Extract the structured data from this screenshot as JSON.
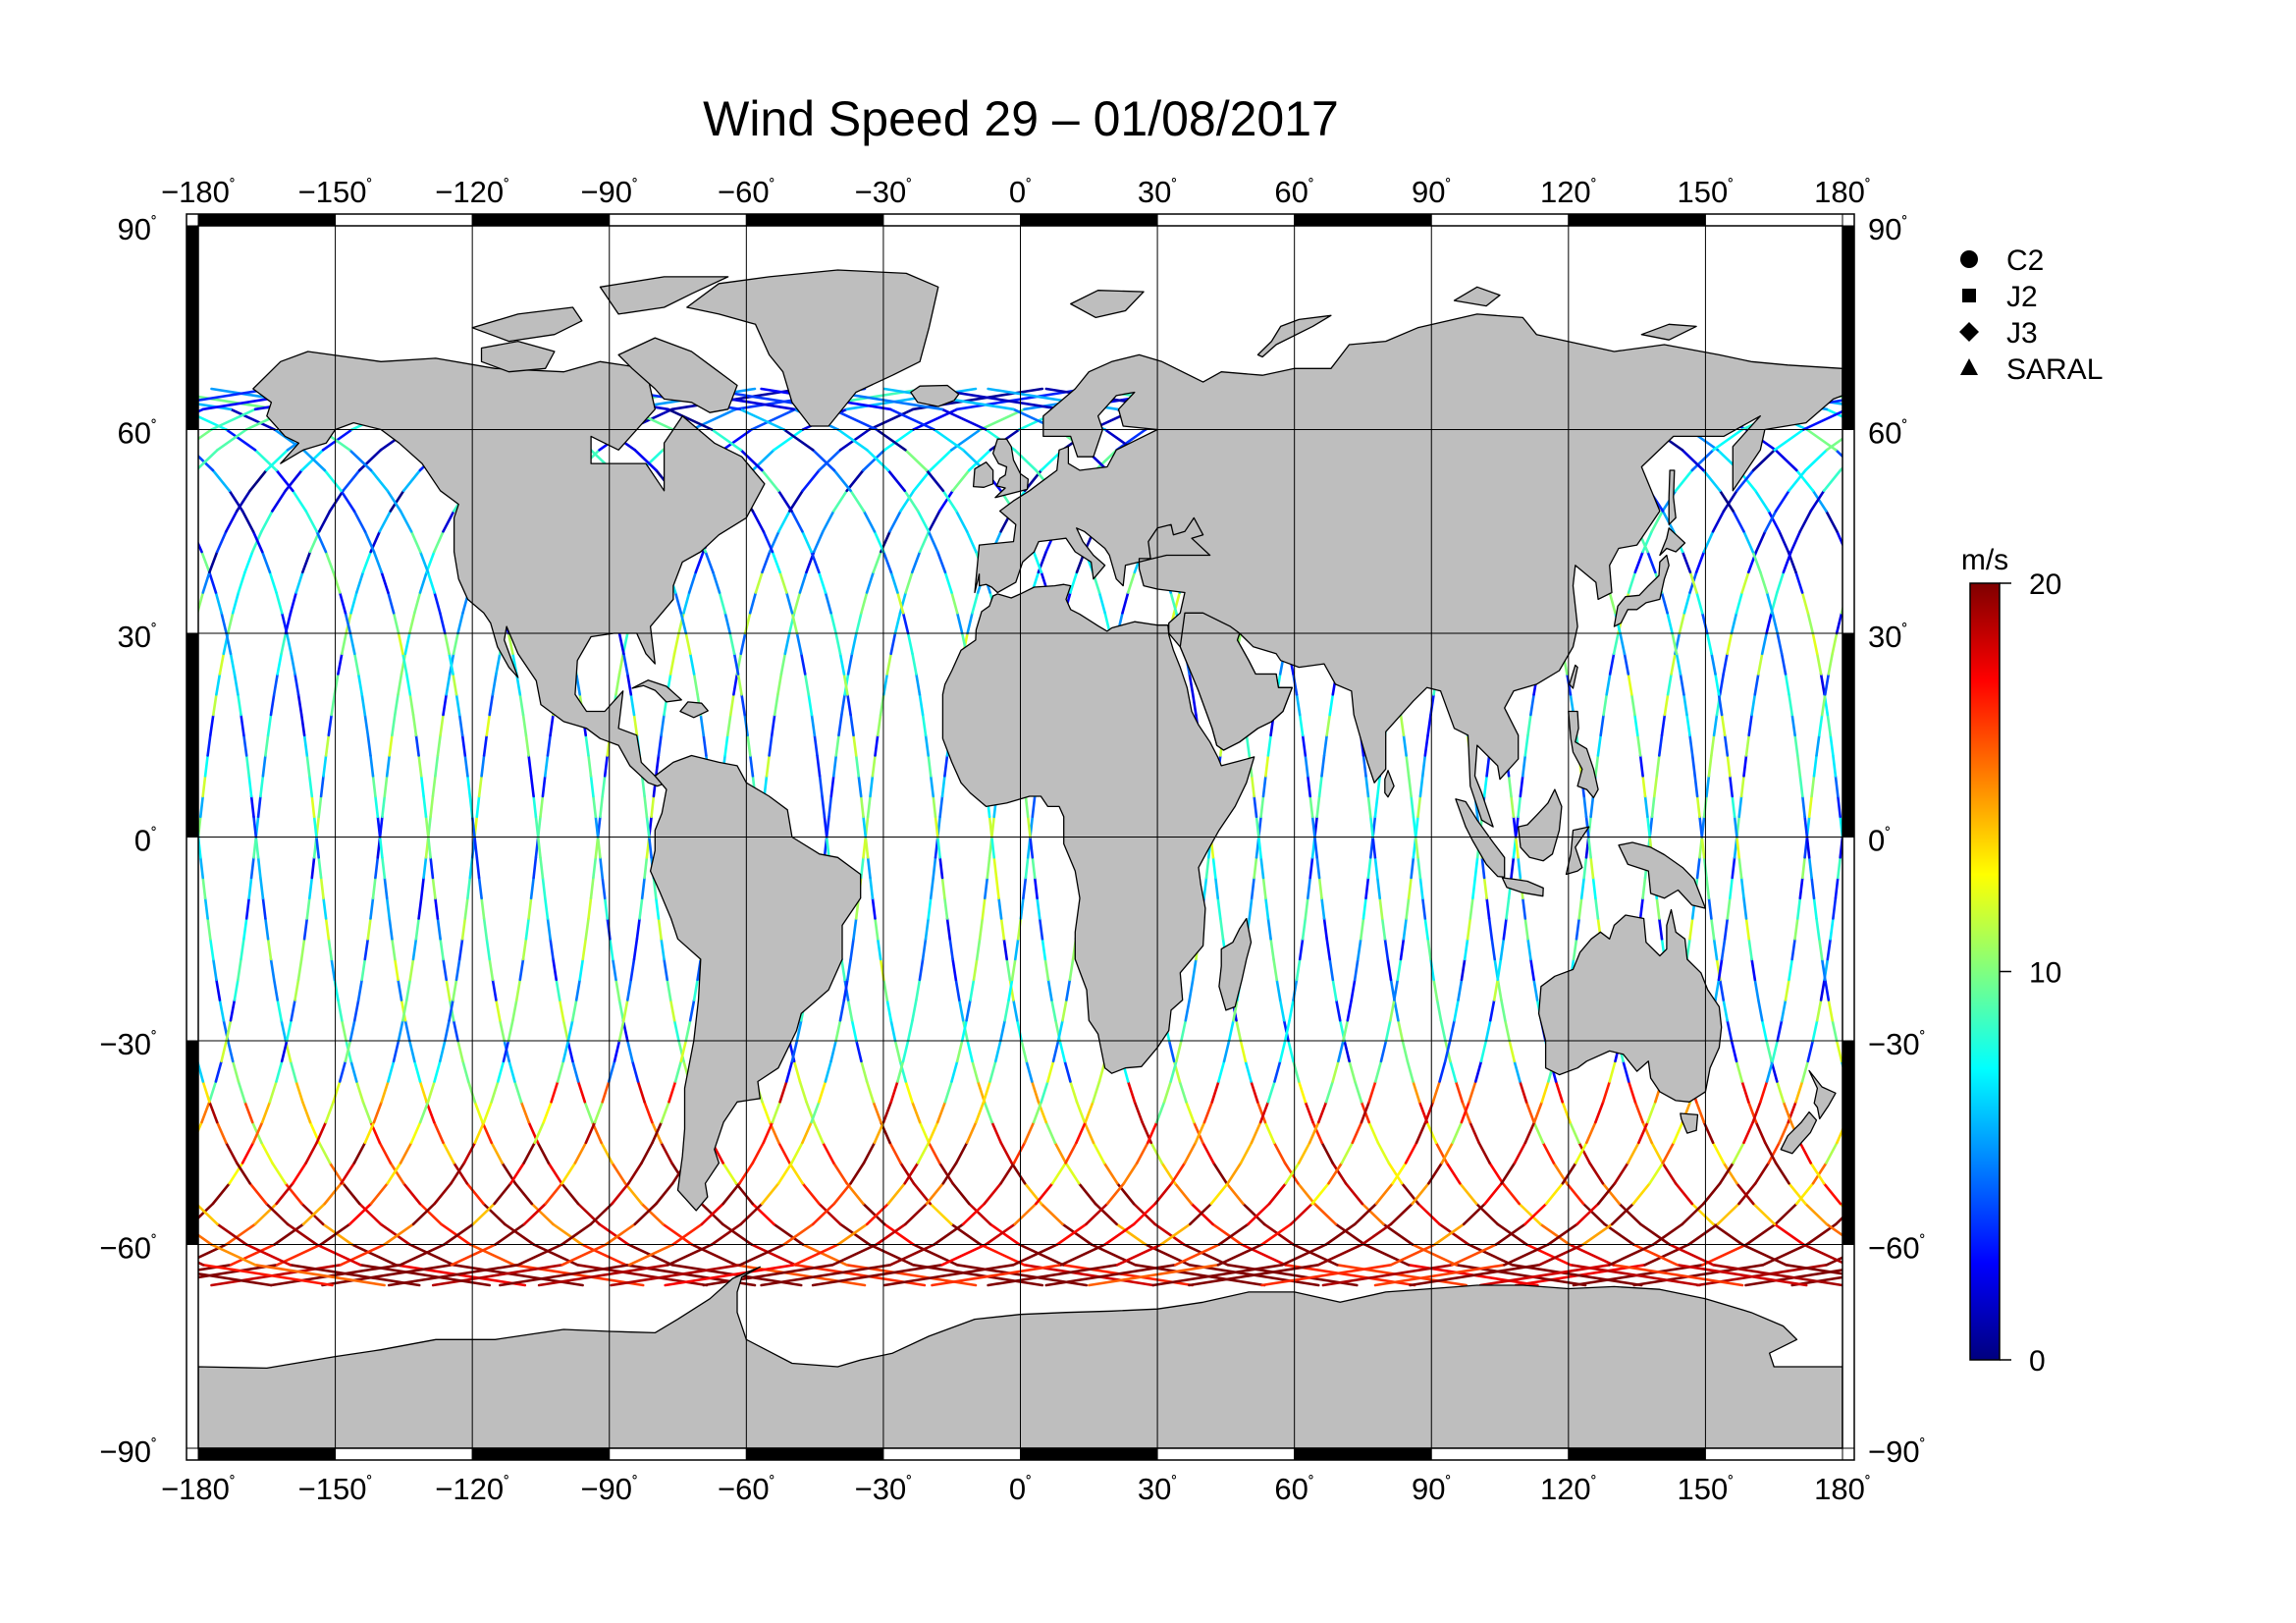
{
  "chart_data": {
    "type": "map",
    "title": "Wind Speed 29 – 01/08/2017",
    "x_ticks": [
      -180,
      -150,
      -120,
      -90,
      -60,
      -30,
      0,
      30,
      60,
      90,
      120,
      150,
      180
    ],
    "y_ticks": [
      90,
      60,
      30,
      0,
      -30,
      -60,
      -90
    ],
    "x_tick_labels": [
      "−180",
      "−150",
      "−120",
      "−90",
      "−60",
      "−30",
      "0",
      "30",
      "60",
      "90",
      "120",
      "150",
      "180"
    ],
    "y_tick_labels": [
      "90",
      "60",
      "30",
      "0",
      "−30",
      "−60",
      "−90"
    ],
    "degree_symbol": "˚",
    "xlim": [
      -180,
      180
    ],
    "ylim": [
      -90,
      90
    ],
    "projection": "equirectangular",
    "grid": true,
    "land_color": "#bebebe",
    "legend": {
      "placement": "right",
      "items": [
        {
          "label": "C2",
          "symbol": "circle"
        },
        {
          "label": "J2",
          "symbol": "square"
        },
        {
          "label": "J3",
          "symbol": "diamond"
        },
        {
          "label": "SARAL",
          "symbol": "triangle"
        }
      ]
    },
    "colorbar": {
      "unit": "m/s",
      "min": 0,
      "max": 20,
      "tick_values": [
        0,
        10,
        20
      ],
      "tick_labels": [
        "0",
        "10",
        "20"
      ],
      "colormap": "jet"
    }
  }
}
